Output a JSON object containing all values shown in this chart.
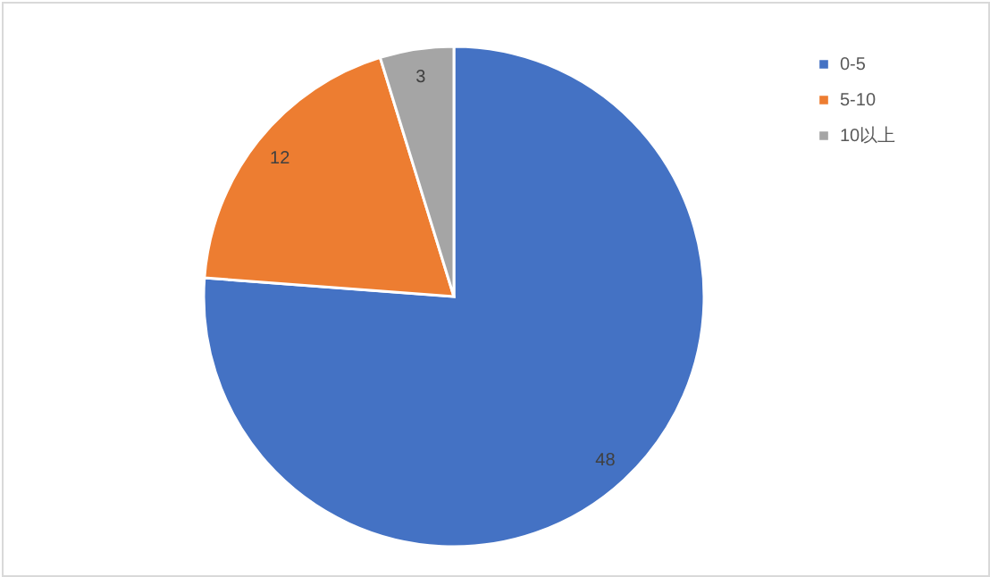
{
  "chart_data": {
    "type": "pie",
    "categories": [
      "0-5",
      "5-10",
      "10以上"
    ],
    "values": [
      48,
      12,
      3
    ],
    "colors": [
      "#4472c4",
      "#ed7d31",
      "#a5a5a5"
    ],
    "data_labels": true,
    "legend": "top right"
  }
}
